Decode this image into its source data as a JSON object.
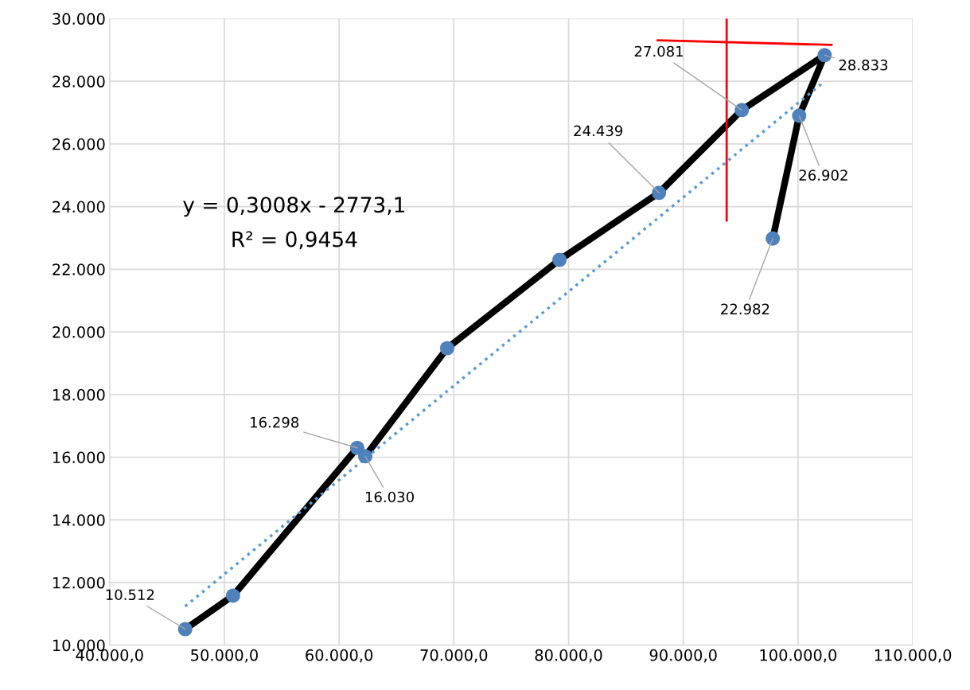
{
  "chart_data": {
    "type": "line",
    "x": [
      46590,
      50760,
      61580,
      62280,
      69420,
      79210,
      87880,
      95100,
      102320,
      100100,
      97800
    ],
    "series": [
      {
        "color": "#000000",
        "marker": "circle",
        "values": [
          10512,
          11580,
          16298,
          16030,
          19480,
          22300,
          24439,
          27081,
          28833,
          26902,
          22982
        ],
        "value_labels": [
          "10.512",
          null,
          "16.298",
          "16.030",
          null,
          null,
          "24.439",
          "27.081",
          "28.833",
          "26.902",
          "22.982"
        ]
      },
      {
        "color": "#5b9bd5",
        "line_style": "dotted",
        "x": [
          46590,
          102320
        ],
        "values": [
          11240,
          28000
        ]
      },
      {
        "color": "#ff0000",
        "x": [
          93780,
          93780
        ],
        "values": [
          23550,
          30000
        ]
      },
      {
        "color": "#ff0000",
        "x": [
          87750,
          102940
        ],
        "values": [
          29310,
          29160
        ]
      }
    ],
    "xlim": [
      40000,
      110000
    ],
    "xticks": [
      {
        "value": 40000,
        "label": "40.000,0"
      },
      {
        "value": 50000,
        "label": "50.000,0"
      },
      {
        "value": 60000,
        "label": "60.000,0"
      },
      {
        "value": 70000,
        "label": "70.000,0"
      },
      {
        "value": 80000,
        "label": "80.000,0"
      },
      {
        "value": 90000,
        "label": "90.000,0"
      },
      {
        "value": 100000,
        "label": "100.000,0"
      },
      {
        "value": 110000,
        "label": "110.000,0"
      }
    ],
    "ylim": [
      10000,
      30000
    ],
    "yticks": [
      {
        "value": 10000,
        "label": "10.000"
      },
      {
        "value": 12000,
        "label": "12.000"
      },
      {
        "value": 14000,
        "label": "14.000"
      },
      {
        "value": 16000,
        "label": "16.000"
      },
      {
        "value": 18000,
        "label": "18.000"
      },
      {
        "value": 20000,
        "label": "20.000"
      },
      {
        "value": 22000,
        "label": "22.000"
      },
      {
        "value": 24000,
        "label": "24.000"
      },
      {
        "value": 26000,
        "label": "26.000"
      },
      {
        "value": 28000,
        "label": "28.000"
      },
      {
        "value": 30000,
        "label": "30.000"
      }
    ],
    "grid": true,
    "annotations": [
      "y = 0,3008x - 2773,1",
      "R² = 0,9454"
    ]
  }
}
